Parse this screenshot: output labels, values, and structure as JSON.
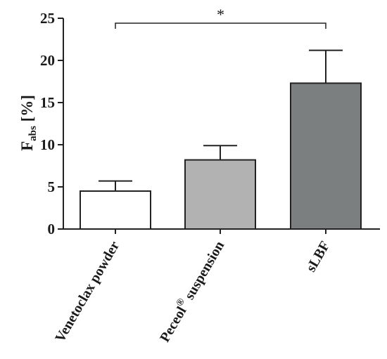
{
  "chart_data": {
    "type": "bar",
    "categories": [
      "Venetoclax powder",
      "Peceol® suspension",
      "sLBF"
    ],
    "category_parts": [
      {
        "main": "Venetoclax powder",
        "sup": "",
        "rest": ""
      },
      {
        "main": "Peceol",
        "sup": "®",
        "rest": " suspension"
      },
      {
        "main": "sLBF",
        "sup": "",
        "rest": ""
      }
    ],
    "values": [
      4.5,
      8.2,
      17.3
    ],
    "errors": [
      1.2,
      1.7,
      3.9
    ],
    "colors": [
      "#ffffff",
      "#b2b2b2",
      "#7b7f7f"
    ],
    "ylabel": "Fabs [%]",
    "ylabel_parts": {
      "main": "F",
      "sub": "abs",
      "rest": " [%]"
    },
    "ylim": [
      0,
      25
    ],
    "yticks": [
      0,
      5,
      10,
      15,
      20,
      25
    ],
    "significance": {
      "from": "Venetoclax powder",
      "to": "sLBF",
      "label": "*"
    },
    "grid": false
  }
}
